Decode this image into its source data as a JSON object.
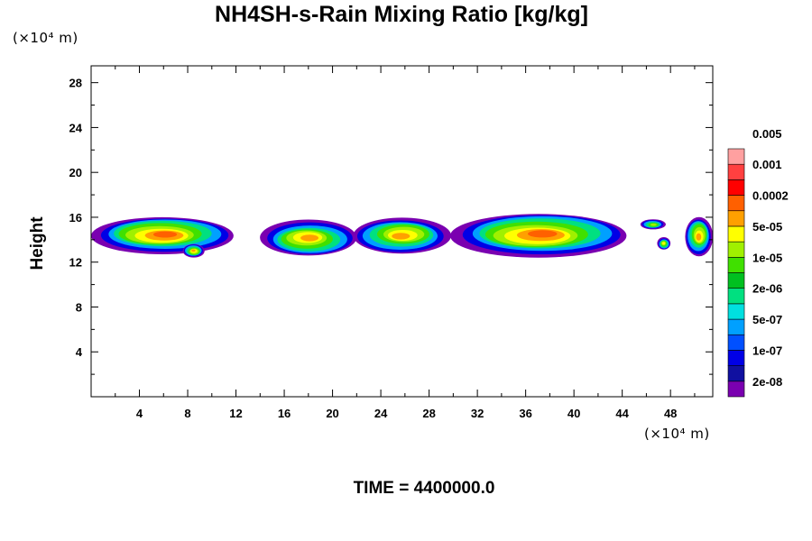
{
  "chart_data": {
    "type": "heatmap",
    "title": "NH4SH-s-Rain Mixing Ratio [kg/kg]",
    "ylabel": "Height",
    "xlabel": "",
    "x_unit": "(×10⁴ m)",
    "y_unit": "(×10⁴ m)",
    "footer": "TIME = 4400000.0",
    "xlim": [
      0,
      51.5
    ],
    "ylim": [
      0,
      29.5
    ],
    "x_ticks": [
      4,
      8,
      12,
      16,
      20,
      24,
      28,
      32,
      36,
      40,
      44,
      48
    ],
    "y_ticks": [
      4,
      8,
      12,
      16,
      20,
      24,
      28
    ],
    "legend": {
      "levels": [
        "2e-08",
        "1e-07",
        "5e-07",
        "2e-06",
        "1e-05",
        "5e-05",
        "0.0002",
        "0.001",
        "0.005"
      ],
      "colors": [
        "#7a00b0",
        "#1010a0",
        "#0000e6",
        "#0050ff",
        "#00a0ff",
        "#00e0e0",
        "#00e080",
        "#00c020",
        "#40e000",
        "#a0f000",
        "#ffff00",
        "#ffa000",
        "#ff6000",
        "#ff0000",
        "#ff4040",
        "#ffa0a0"
      ]
    },
    "cells": [
      {
        "x0": 0.0,
        "x1": 11.8,
        "y0": 12.8,
        "y1": 16.1,
        "peak": 5
      },
      {
        "x0": 7.6,
        "x1": 9.4,
        "y0": 12.4,
        "y1": 13.6,
        "peak": 4
      },
      {
        "x0": 14.0,
        "x1": 22.0,
        "y0": 12.5,
        "y1": 15.7,
        "peak": 4
      },
      {
        "x0": 21.7,
        "x1": 29.8,
        "y0": 12.8,
        "y1": 16.0,
        "peak": 4
      },
      {
        "x0": 29.8,
        "x1": 44.4,
        "y0": 12.5,
        "y1": 16.4,
        "peak": 6
      },
      {
        "x0": 45.5,
        "x1": 47.6,
        "y0": 14.9,
        "y1": 15.8,
        "peak": 2
      },
      {
        "x0": 46.9,
        "x1": 48.0,
        "y0": 13.1,
        "y1": 14.2,
        "peak": 3
      },
      {
        "x0": 49.2,
        "x1": 51.5,
        "y0": 12.6,
        "y1": 16.1,
        "peak": 4
      }
    ]
  }
}
